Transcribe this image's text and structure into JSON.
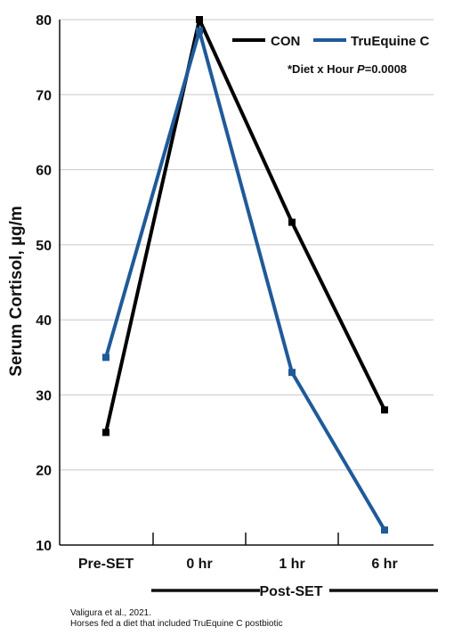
{
  "chart_data": {
    "type": "line",
    "categories": [
      "Pre-SET",
      "0 hr",
      "1 hr",
      "6 hr"
    ],
    "series": [
      {
        "name": "CON",
        "values": [
          25,
          80,
          53,
          28
        ],
        "color": "#000000"
      },
      {
        "name": "TruEquine C",
        "values": [
          35,
          78.5,
          33,
          12
        ],
        "color": "#1f5a99"
      }
    ],
    "ylabel": "Serum Cortisol, µg/m",
    "ylim": [
      10,
      80
    ],
    "yticks": [
      10,
      20,
      30,
      40,
      50,
      60,
      70,
      80
    ],
    "grid": true,
    "legend_position": "top-right",
    "annotation": {
      "prefix": "*Diet x Hour ",
      "italic": "P",
      "suffix": "=0.0008"
    },
    "group_label": "Post-SET"
  },
  "source": {
    "line1": "Valigura et al., 2021.",
    "line2": "Horses fed a diet that included TruEquine C postbiotic"
  }
}
